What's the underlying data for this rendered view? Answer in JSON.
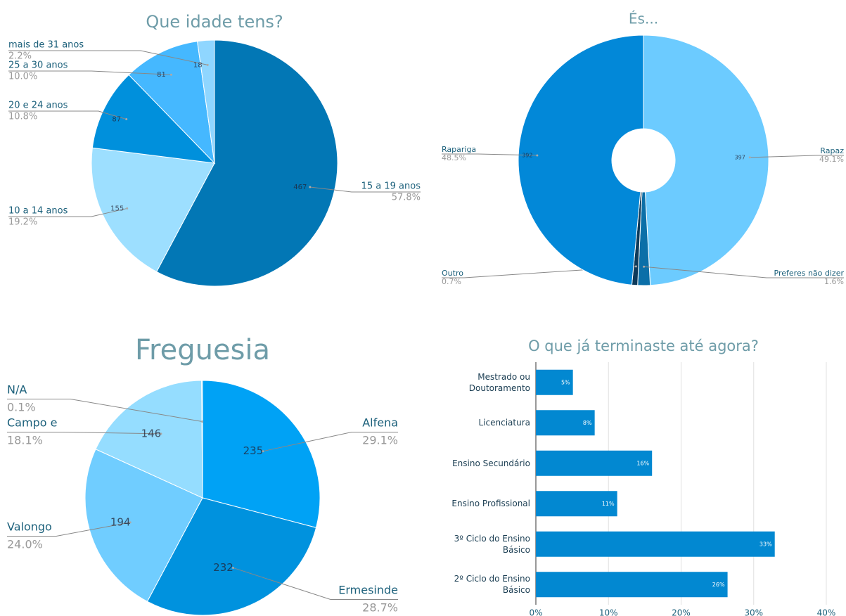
{
  "chart_data": [
    {
      "type": "pie",
      "title": "Que idade tens?",
      "categories": [
        "15 a 19 anos",
        "10 a 14 anos",
        "20 e 24 anos",
        "25 a 30 anos",
        "mais de 31 anos"
      ],
      "values": [
        467,
        155,
        87,
        81,
        18
      ],
      "percent_labels": [
        "57.8%",
        "19.2%",
        "10.8%",
        "10.0%",
        "2.2%"
      ],
      "colors": [
        "#0277b5",
        "#9ddfff",
        "#0090dc",
        "#45b8ff",
        "#8fd6ff"
      ]
    },
    {
      "type": "donut",
      "title": "És...",
      "categories": [
        "Rapaz",
        "Preferes não dizer",
        "Outro",
        "Rapariga"
      ],
      "values": [
        397,
        13,
        6,
        392
      ],
      "percent_labels": [
        "49.1%",
        "1.6%",
        "0.7%",
        "48.5%"
      ],
      "colors": [
        "#6ccbff",
        "#0b6fa8",
        "#0d3a5a",
        "#0288d8"
      ]
    },
    {
      "type": "pie",
      "title": "Freguesia",
      "categories": [
        "Alfena",
        "Ermesinde",
        "Valongo",
        "Campo e",
        "N/A"
      ],
      "values": [
        235,
        232,
        194,
        146,
        1
      ],
      "percent_labels": [
        "29.1%",
        "28.7%",
        "24.0%",
        "18.1%",
        "0.1%"
      ],
      "colors": [
        "#00a2f5",
        "#0092de",
        "#70cdff",
        "#95ddff",
        "#5ab8e8"
      ]
    },
    {
      "type": "hbar",
      "title": "O que já terminaste até agora?",
      "categories": [
        "Mestrado ou Doutoramento",
        "Licenciatura",
        "Ensino Secundário",
        "Ensino Profissional",
        "3º Ciclo do Ensino Básico",
        "2º Ciclo do Ensino Básico"
      ],
      "values": [
        5.1,
        8.1,
        16,
        11.2,
        32.9,
        26.4
      ],
      "value_labels": [
        "5%",
        "8%",
        "16%",
        "11%",
        "33%",
        "26%"
      ],
      "color": "#0288d1",
      "xlim": [
        0,
        40
      ],
      "xticks": [
        {
          "value": 0,
          "label": "0%"
        },
        {
          "value": 10,
          "label": "10%"
        },
        {
          "value": 20,
          "label": "20%"
        },
        {
          "value": 30,
          "label": "30%"
        },
        {
          "value": 40,
          "label": "40%"
        }
      ],
      "grid": true
    }
  ]
}
